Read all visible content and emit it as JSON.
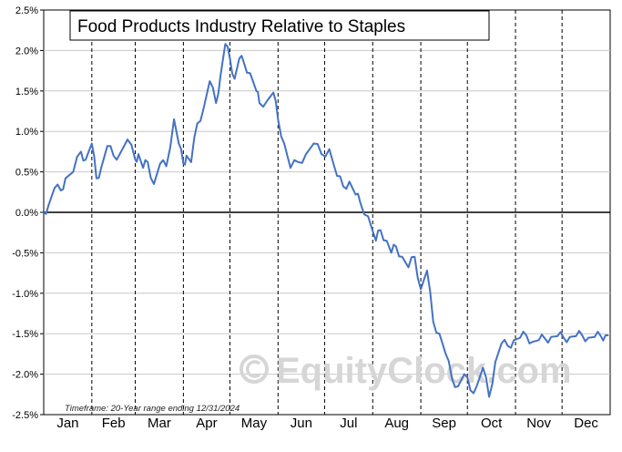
{
  "chart_data": {
    "type": "line",
    "title": "Food Products Industry Relative to Staples",
    "xlabel": "",
    "ylabel": "",
    "ylim": [
      -2.5,
      2.5
    ],
    "y_ticks": [
      "2.5%",
      "2.0%",
      "1.5%",
      "1.0%",
      "0.5%",
      "0.0%",
      "-0.5%",
      "-1.0%",
      "-1.5%",
      "-2.0%",
      "-2.5%"
    ],
    "y_tick_values": [
      2.5,
      2.0,
      1.5,
      1.0,
      0.5,
      0.0,
      -0.5,
      -1.0,
      -1.5,
      -2.0,
      -2.5
    ],
    "x_ticks": [
      "Jan",
      "Feb",
      "Mar",
      "Apr",
      "May",
      "Jun",
      "Jul",
      "Aug",
      "Sep",
      "Oct",
      "Nov",
      "Dec"
    ],
    "grid": true,
    "series_color": "#4472c4",
    "footnote": "Timeframe: 20-Year range ending 12/31/2024",
    "watermark": "EquityClock.com",
    "series": [
      {
        "x": [
          1,
          4,
          8,
          12,
          15,
          20,
          25,
          28,
          32,
          35,
          38,
          42,
          46,
          50,
          55,
          60,
          62,
          65,
          68,
          72,
          76,
          80,
          85,
          88,
          91,
          93,
          96,
          100,
          104,
          108,
          112,
          115,
          118,
          121,
          124,
          127,
          130,
          134,
          138,
          140,
          145,
          149,
          152,
          156,
          160,
          165,
          170,
          175,
          180,
          185,
          190,
          194,
          198,
          202,
          205,
          210,
          215,
          218,
          222,
          225,
          228,
          232,
          236,
          240,
          244,
          248,
          252,
          256,
          260,
          264,
          268,
          272,
          276,
          280,
          284,
          288,
          292,
          296,
          300,
          304,
          308,
          312,
          316,
          320,
          324,
          328,
          332,
          336,
          340,
          344,
          348,
          352,
          356,
          360,
          363,
          365
        ],
        "y": [
          0.0,
          0.08,
          0.3,
          0.27,
          0.42,
          0.5,
          0.75,
          0.65,
          0.85,
          0.42,
          0.55,
          0.82,
          0.7,
          0.72,
          0.9,
          0.65,
          0.72,
          0.55,
          0.62,
          0.35,
          0.6,
          0.57,
          1.15,
          0.85,
          0.6,
          0.7,
          0.62,
          1.1,
          1.28,
          1.62,
          1.35,
          1.7,
          2.08,
          1.9,
          1.65,
          1.9,
          1.85,
          1.72,
          1.5,
          1.35,
          1.38,
          1.48,
          1.15,
          0.85,
          0.55,
          0.62,
          0.72,
          0.85,
          0.72,
          0.78,
          0.45,
          0.32,
          0.38,
          0.22,
          0.12,
          -0.05,
          -0.35,
          -0.22,
          -0.35,
          -0.5,
          -0.42,
          -0.55,
          -0.68,
          -0.55,
          -0.95,
          -0.72,
          -1.35,
          -1.5,
          -1.75,
          -2.05,
          -2.15,
          -2.0,
          -2.2,
          -2.15,
          -1.92,
          -2.28,
          -1.85,
          -1.62,
          -1.65,
          -1.58,
          -1.55,
          -1.52,
          -1.6,
          -1.58,
          -1.56,
          -1.54,
          -1.53,
          -1.55,
          -1.54,
          -1.53,
          -1.52,
          -1.55,
          -1.54,
          -1.53,
          -1.52,
          -1.52
        ]
      }
    ]
  }
}
